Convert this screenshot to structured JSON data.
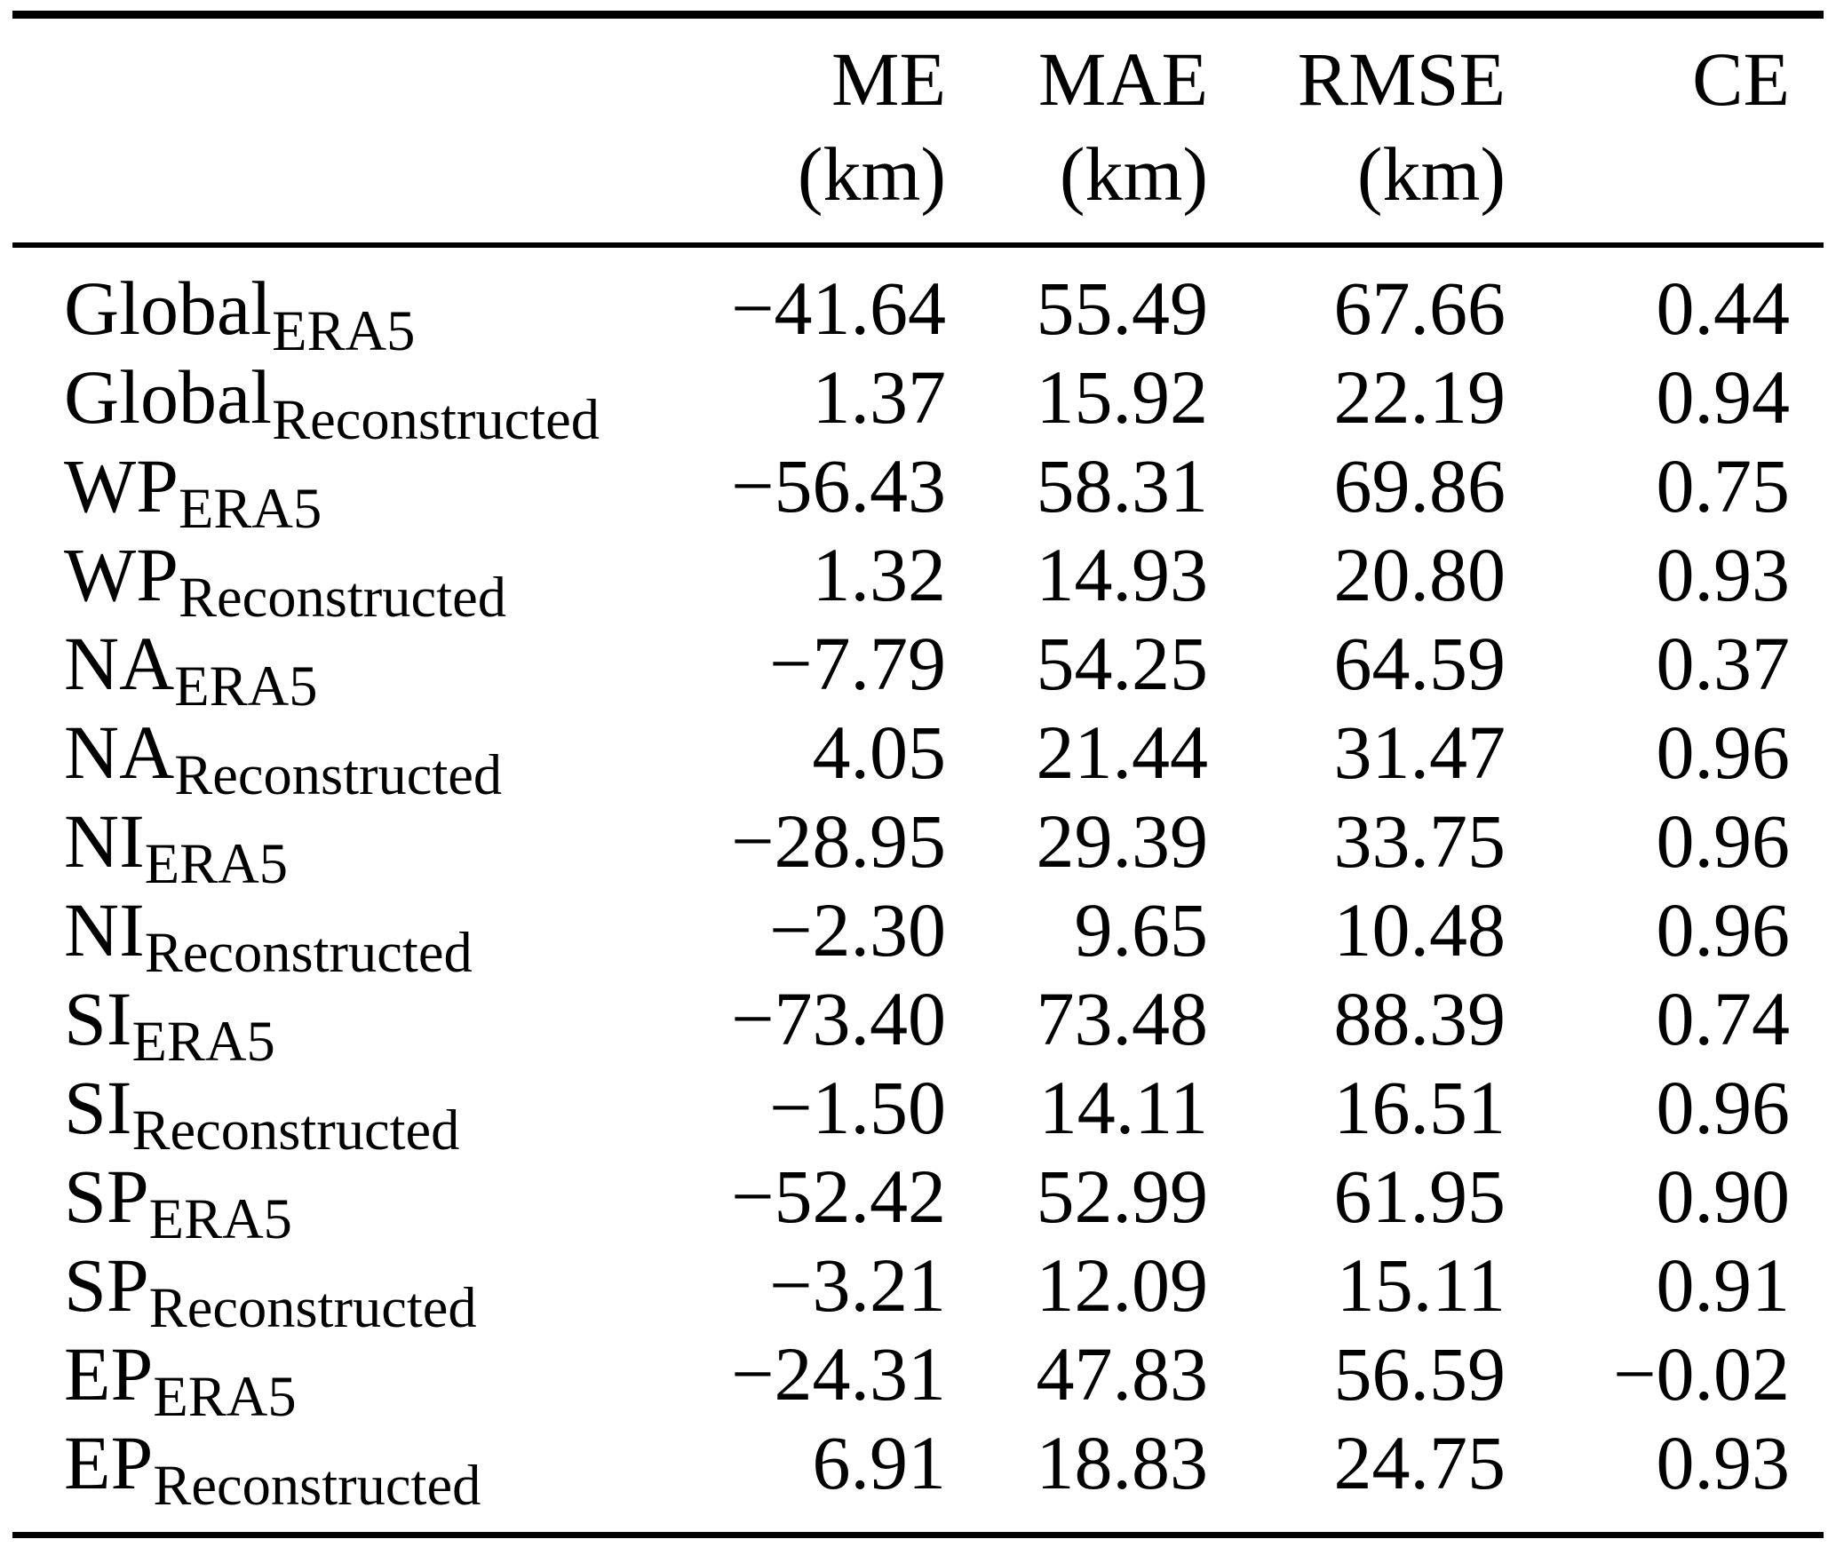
{
  "table": {
    "columns": [
      {
        "label": "ME",
        "unit": "(km)"
      },
      {
        "label": "MAE",
        "unit": "(km)"
      },
      {
        "label": "RMSE",
        "unit": "(km)"
      },
      {
        "label": "CE",
        "unit": ""
      }
    ],
    "rows": [
      {
        "region": "Global",
        "sub": "ERA5",
        "me": "−41.64",
        "mae": "55.49",
        "rmse": "67.66",
        "ce": "0.44"
      },
      {
        "region": "Global",
        "sub": "Reconstructed",
        "me": "1.37",
        "mae": "15.92",
        "rmse": "22.19",
        "ce": "0.94"
      },
      {
        "region": "WP",
        "sub": "ERA5",
        "me": "−56.43",
        "mae": "58.31",
        "rmse": "69.86",
        "ce": "0.75"
      },
      {
        "region": "WP",
        "sub": "Reconstructed",
        "me": "1.32",
        "mae": "14.93",
        "rmse": "20.80",
        "ce": "0.93"
      },
      {
        "region": "NA",
        "sub": "ERA5",
        "me": "−7.79",
        "mae": "54.25",
        "rmse": "64.59",
        "ce": "0.37"
      },
      {
        "region": "NA",
        "sub": "Reconstructed",
        "me": "4.05",
        "mae": "21.44",
        "rmse": "31.47",
        "ce": "0.96"
      },
      {
        "region": "NI",
        "sub": "ERA5",
        "me": "−28.95",
        "mae": "29.39",
        "rmse": "33.75",
        "ce": "0.96"
      },
      {
        "region": "NI",
        "sub": "Reconstructed",
        "me": "−2.30",
        "mae": "9.65",
        "rmse": "10.48",
        "ce": "0.96"
      },
      {
        "region": "SI",
        "sub": "ERA5",
        "me": "−73.40",
        "mae": "73.48",
        "rmse": "88.39",
        "ce": "0.74"
      },
      {
        "region": "SI",
        "sub": "Reconstructed",
        "me": "−1.50",
        "mae": "14.11",
        "rmse": "16.51",
        "ce": "0.96"
      },
      {
        "region": "SP",
        "sub": "ERA5",
        "me": "−52.42",
        "mae": "52.99",
        "rmse": "61.95",
        "ce": "0.90"
      },
      {
        "region": "SP",
        "sub": "Reconstructed",
        "me": "−3.21",
        "mae": "12.09",
        "rmse": "15.11",
        "ce": "0.91"
      },
      {
        "region": "EP",
        "sub": "ERA5",
        "me": "−24.31",
        "mae": "47.83",
        "rmse": "56.59",
        "ce": "−0.02"
      },
      {
        "region": "EP",
        "sub": "Reconstructed",
        "me": "6.91",
        "mae": "18.83",
        "rmse": "24.75",
        "ce": "0.93"
      }
    ]
  }
}
